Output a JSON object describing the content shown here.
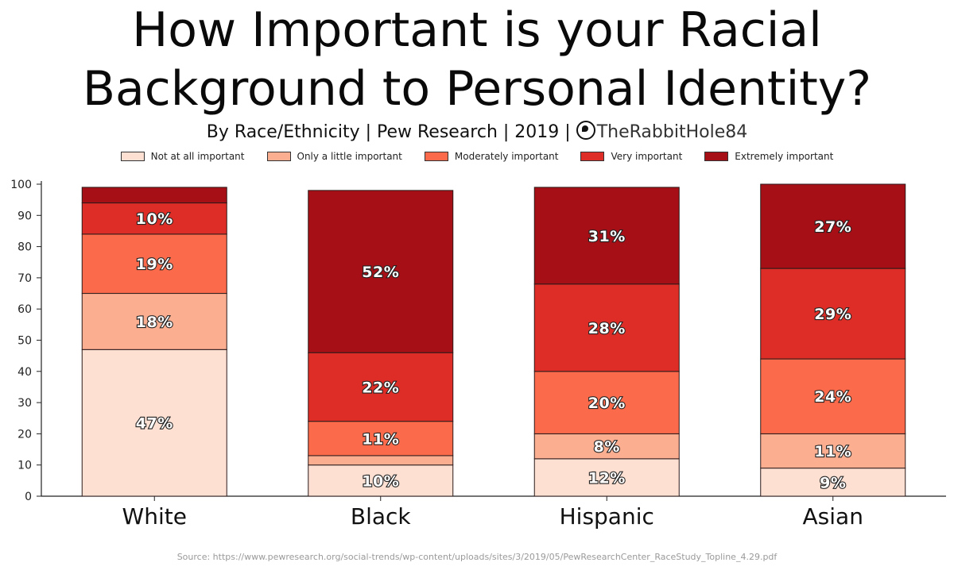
{
  "title_line1": "How Important is your Racial",
  "title_line2": "Background to Personal Identity?",
  "subtitle": "By Race/Ethnicity | Pew Research | 2019 |",
  "brand": "TheRabbitHole84",
  "source": "Source: https://www.pewresearch.org/social-trends/wp-content/uploads/sites/3/2019/05/PewResearchCenter_RaceStudy_Topline_4.29.pdf",
  "chart_data": {
    "type": "bar",
    "stacked": true,
    "categories": [
      "White",
      "Black",
      "Hispanic",
      "Asian"
    ],
    "ylim": [
      0,
      100
    ],
    "yticks": [
      0,
      10,
      20,
      30,
      40,
      50,
      60,
      70,
      80,
      90,
      100
    ],
    "legend_position": "top-center",
    "series": [
      {
        "name": "Not at all important",
        "color": "#fde0d2",
        "values": [
          47,
          10,
          12,
          9
        ],
        "labels": [
          "47%",
          "10%",
          "12%",
          "9%"
        ]
      },
      {
        "name": "Only a little important",
        "color": "#fcae91",
        "values": [
          18,
          3,
          8,
          11
        ],
        "labels": [
          "18%",
          "",
          "8%",
          "11%"
        ]
      },
      {
        "name": "Moderately important",
        "color": "#fb6b4b",
        "values": [
          19,
          11,
          20,
          24
        ],
        "labels": [
          "19%",
          "11%",
          "20%",
          "24%"
        ]
      },
      {
        "name": "Very important",
        "color": "#de2d26",
        "values": [
          10,
          22,
          28,
          29
        ],
        "labels": [
          "10%",
          "22%",
          "28%",
          "29%"
        ]
      },
      {
        "name": "Extremely important",
        "color": "#a50f15",
        "values": [
          5,
          52,
          31,
          27
        ],
        "labels": [
          "",
          "52%",
          "31%",
          "27%"
        ]
      }
    ]
  }
}
